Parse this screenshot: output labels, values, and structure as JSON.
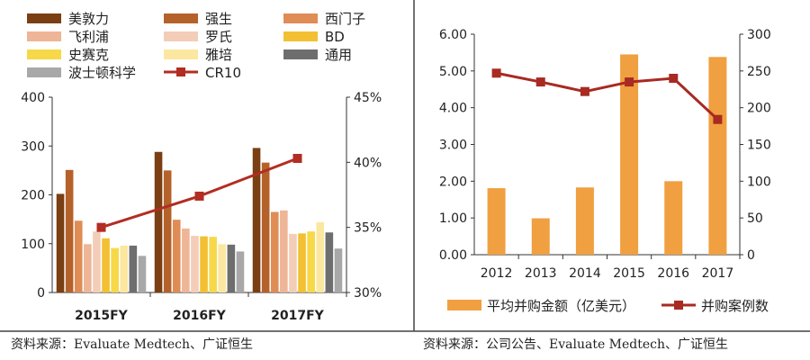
{
  "left": {
    "source": "资料来源：Evaluate Medtech、广证恒生",
    "chart_data": {
      "type": "bar",
      "categories": [
        "2015FY",
        "2016FY",
        "2017FY"
      ],
      "y_left": {
        "ticks": [
          "0",
          "100",
          "200",
          "300",
          "400"
        ],
        "ylim": [
          0,
          400
        ]
      },
      "y_right": {
        "ticks": [
          "30%",
          "35%",
          "40%",
          "45%"
        ],
        "ylim": [
          30,
          45
        ]
      },
      "legend_position": "top",
      "grid": false,
      "series": [
        {
          "name": "美敦力",
          "color": "#7a3f12",
          "values": [
            202,
            288,
            296
          ]
        },
        {
          "name": "强生",
          "color": "#b5622a",
          "values": [
            251,
            250,
            266
          ]
        },
        {
          "name": "西门子",
          "color": "#df8c55",
          "values": [
            147,
            149,
            165
          ]
        },
        {
          "name": "飞利浦",
          "color": "#eeb596",
          "values": [
            99,
            131,
            168
          ]
        },
        {
          "name": "罗氏",
          "color": "#f3cdb8",
          "values": [
            125,
            116,
            120
          ]
        },
        {
          "name": "BD",
          "color": "#f2c032",
          "values": [
            111,
            115,
            121
          ]
        },
        {
          "name": "史赛克",
          "color": "#f7d848",
          "values": [
            91,
            114,
            125
          ]
        },
        {
          "name": "雅培",
          "color": "#fbe7a0",
          "values": [
            96,
            99,
            144
          ]
        },
        {
          "name": "通用",
          "color": "#6e6e6e",
          "values": [
            96,
            98,
            123
          ]
        },
        {
          "name": "波士顿科学",
          "color": "#a8a8a8",
          "values": [
            75,
            84,
            90
          ]
        }
      ],
      "line": {
        "name": "CR10",
        "color": "#b22d22",
        "values": [
          35.0,
          37.4,
          40.3
        ]
      }
    }
  },
  "right": {
    "source": "资料来源：公司公告、Evaluate Medtech、广证恒生",
    "chart_data": {
      "type": "bar",
      "categories": [
        "2012",
        "2013",
        "2014",
        "2015",
        "2016",
        "2017"
      ],
      "y_left": {
        "ticks": [
          "0.00",
          "1.00",
          "2.00",
          "3.00",
          "4.00",
          "5.00",
          "6.00"
        ],
        "ylim": [
          0,
          6
        ]
      },
      "y_right": {
        "ticks": [
          "0",
          "50",
          "100",
          "150",
          "200",
          "250",
          "300"
        ],
        "ylim": [
          0,
          300
        ]
      },
      "legend_position": "bottom",
      "grid": false,
      "bars": {
        "name": "平均并购金额（亿美元）",
        "color": "#f0a040",
        "values": [
          1.81,
          0.99,
          1.83,
          5.45,
          2.0,
          5.38
        ]
      },
      "line": {
        "name": "并购案例数",
        "color": "#a82a22",
        "values": [
          247,
          235,
          222,
          235,
          240,
          184
        ]
      }
    }
  }
}
